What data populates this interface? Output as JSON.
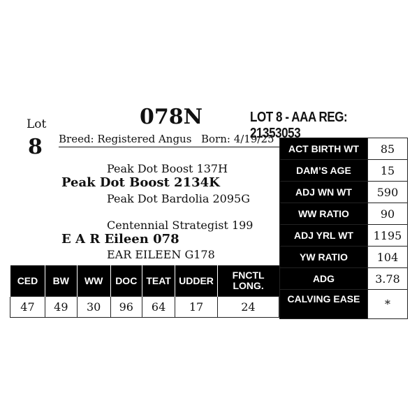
{
  "lot": {
    "label": "Lot",
    "number": "8"
  },
  "tag": "078N",
  "registration": "LOT 8 - AAA REG: 21353053",
  "breed": "Breed: Registered Angus",
  "born": "Born: 4/19/25",
  "pedigree": {
    "sire_sire": "Peak Dot Boost 137H",
    "sire": "Peak Dot Boost 2134K",
    "sire_dam": "Peak Dot Bardolia 2095G",
    "dam_sire": "Centennial Strategist 199",
    "dam": "E A R Eileen 078",
    "dam_dam": "EAR EILEEN G178"
  },
  "performance": [
    {
      "label": "ACT BIRTH WT",
      "value": "85"
    },
    {
      "label": "DAM’S AGE",
      "value": "15"
    },
    {
      "label": "ADJ WN WT",
      "value": "590"
    },
    {
      "label": "WW RATIO",
      "value": "90"
    },
    {
      "label": "ADJ YRL WT",
      "value": "1195"
    },
    {
      "label": "YW RATIO",
      "value": "104"
    },
    {
      "label": "ADG",
      "value": "3.78"
    },
    {
      "label": "CALVING EASE",
      "value": "*"
    }
  ],
  "epds": {
    "headers": [
      "CED",
      "BW",
      "WW",
      "DOC",
      "TEAT",
      "UDDER",
      "FNCTL LONG."
    ],
    "values": [
      "47",
      "49",
      "30",
      "96",
      "64",
      "17",
      "24"
    ]
  }
}
